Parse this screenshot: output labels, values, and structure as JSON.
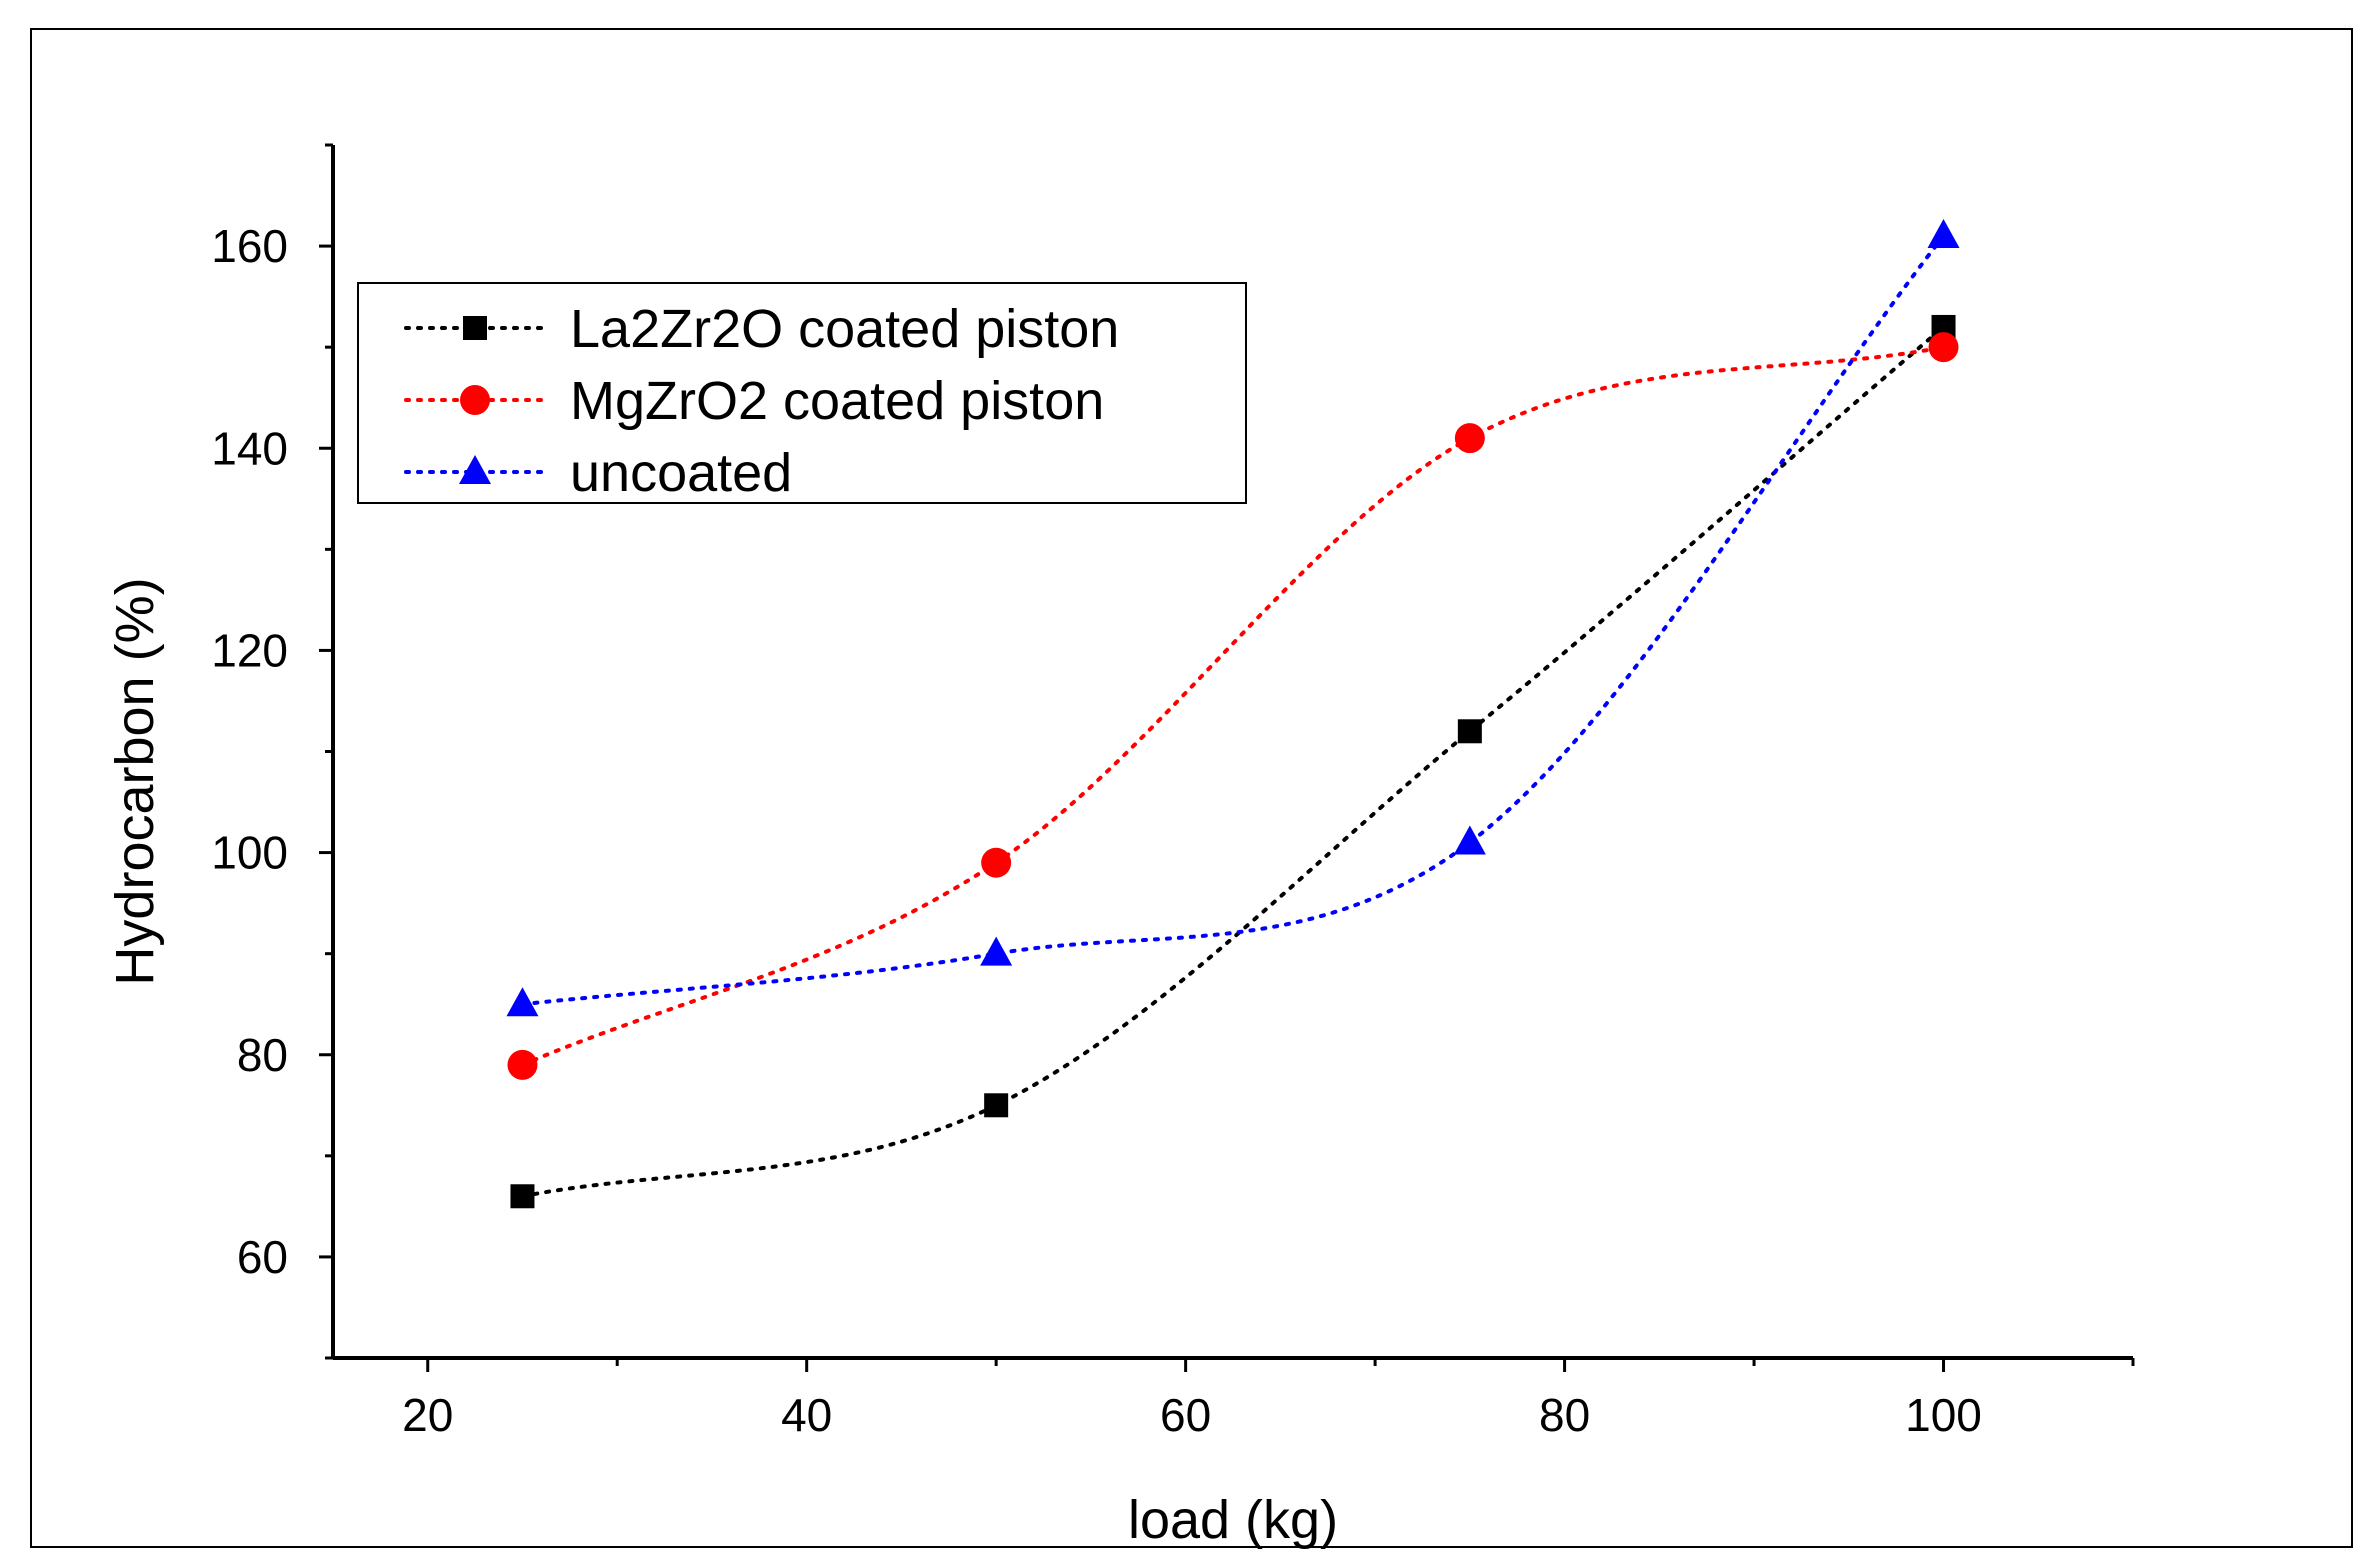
{
  "chart_data": {
    "type": "line",
    "title": "",
    "xlabel": "load (kg)",
    "ylabel": "Hydrocarbon (%)",
    "xlim": [
      15,
      110
    ],
    "ylim": [
      50,
      170
    ],
    "xticks": [
      20,
      40,
      60,
      80,
      100
    ],
    "yticks": [
      60,
      80,
      100,
      120,
      140,
      160
    ],
    "grid": false,
    "legend_position": "top-left",
    "x": [
      25,
      50,
      75,
      100
    ],
    "series": [
      {
        "name": "La2Zr2O coated piston",
        "values": [
          66,
          75,
          112,
          152
        ],
        "color": "#000000",
        "marker": "square",
        "line_style": "dotted"
      },
      {
        "name": "MgZrO2 coated piston",
        "values": [
          79,
          99,
          141,
          150
        ],
        "color": "#ff0000",
        "marker": "circle",
        "line_style": "dotted"
      },
      {
        "name": "uncoated",
        "values": [
          85,
          90,
          101,
          161
        ],
        "color": "#0000ff",
        "marker": "triangle",
        "line_style": "dotted"
      }
    ]
  }
}
